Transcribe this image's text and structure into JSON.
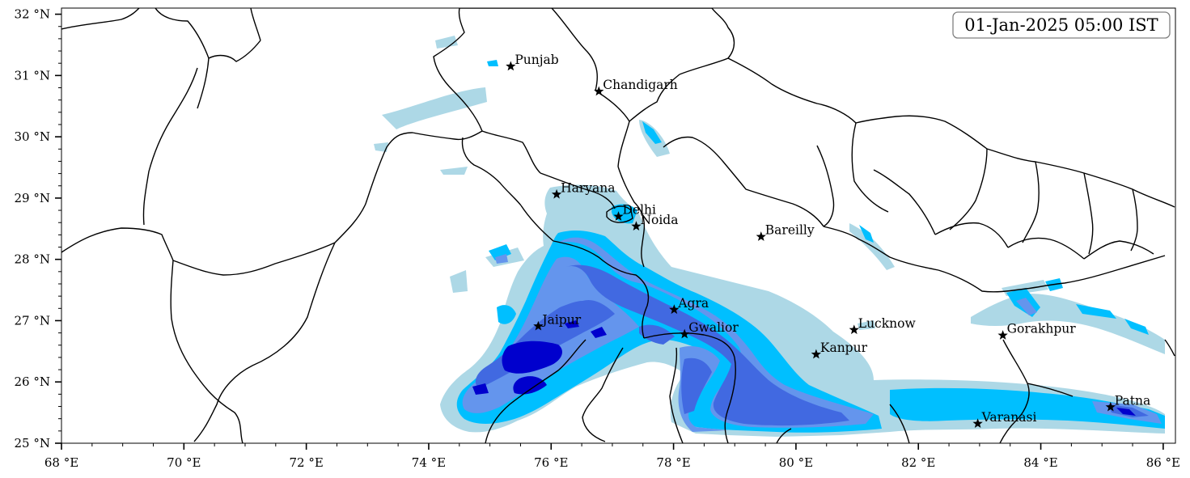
{
  "timestamp": "01-Jan-2025 05:00 IST",
  "axes": {
    "x_ticks": [
      "68 °E",
      "70 °E",
      "72 °E",
      "74 °E",
      "76 °E",
      "78 °E",
      "80 °E",
      "82 °E",
      "84 °E",
      "86 °E"
    ],
    "y_ticks": [
      "32 °N",
      "31 °N",
      "30 °N",
      "29 °N",
      "28 °N",
      "27 °N",
      "26 °N",
      "25 °N"
    ],
    "lon_range": [
      68,
      86.2
    ],
    "lat_range": [
      25,
      32.1
    ]
  },
  "cities": [
    {
      "name": "Punjab",
      "lon": 75.34,
      "lat": 31.15
    },
    {
      "name": "Chandigarh",
      "lon": 76.78,
      "lat": 30.74
    },
    {
      "name": "Haryana",
      "lon": 76.09,
      "lat": 29.06
    },
    {
      "name": "Delhi",
      "lon": 77.1,
      "lat": 28.7
    },
    {
      "name": "Noida",
      "lon": 77.39,
      "lat": 28.54
    },
    {
      "name": "Bareilly",
      "lon": 79.43,
      "lat": 28.37
    },
    {
      "name": "Agra",
      "lon": 78.01,
      "lat": 27.18
    },
    {
      "name": "Jaipur",
      "lon": 75.79,
      "lat": 26.91
    },
    {
      "name": "Gwalior",
      "lon": 78.18,
      "lat": 26.78
    },
    {
      "name": "Lucknow",
      "lon": 80.95,
      "lat": 26.85
    },
    {
      "name": "Gorakhpur",
      "lon": 83.38,
      "lat": 26.76
    },
    {
      "name": "Kanpur",
      "lon": 80.33,
      "lat": 26.45
    },
    {
      "name": "Varanasi",
      "lon": 82.97,
      "lat": 25.32
    },
    {
      "name": "Patna",
      "lon": 85.14,
      "lat": 25.59
    }
  ],
  "colors": {
    "level_1": "#add8e6",
    "level_2": "#00bfff",
    "level_3": "#6495ed",
    "level_4": "#4169e1",
    "level_5": "#0000cd"
  }
}
